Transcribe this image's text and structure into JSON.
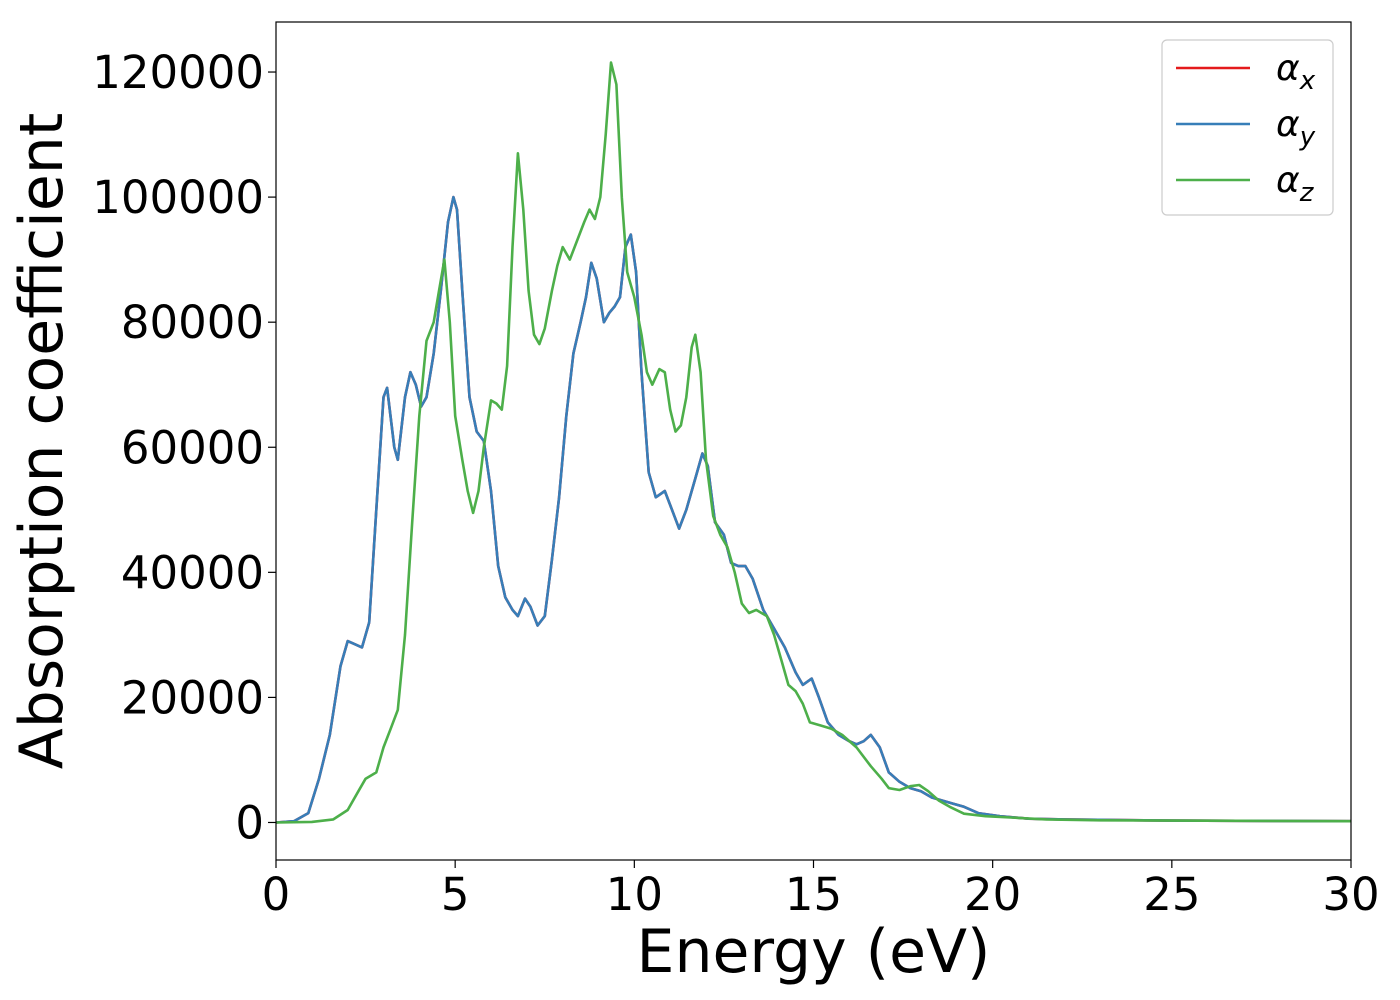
{
  "chart_data": {
    "type": "line",
    "xlabel": "Energy (eV)",
    "ylabel": "Absorption coefficient",
    "xlim": [
      0,
      30
    ],
    "ylim": [
      -6000,
      128000
    ],
    "x_ticks": [
      "0",
      "5",
      "10",
      "15",
      "20",
      "25",
      "30"
    ],
    "y_ticks": [
      "0",
      "20000",
      "40000",
      "60000",
      "80000",
      "100000",
      "120000"
    ],
    "grid": false,
    "legend_position": "upper-right",
    "series": [
      {
        "name": "α",
        "subscript": "x",
        "color": "#e41a1c",
        "points": [
          [
            0,
            0
          ],
          [
            0.5,
            200
          ],
          [
            0.9,
            1500
          ],
          [
            1.2,
            7000
          ],
          [
            1.5,
            14000
          ],
          [
            1.8,
            25000
          ],
          [
            2.0,
            29000
          ],
          [
            2.2,
            28500
          ],
          [
            2.4,
            28000
          ],
          [
            2.6,
            32000
          ],
          [
            2.8,
            50000
          ],
          [
            3.0,
            68000
          ],
          [
            3.1,
            69500
          ],
          [
            3.3,
            60000
          ],
          [
            3.4,
            58000
          ],
          [
            3.6,
            68000
          ],
          [
            3.75,
            72000
          ],
          [
            3.9,
            70000
          ],
          [
            4.05,
            66500
          ],
          [
            4.2,
            68000
          ],
          [
            4.4,
            75000
          ],
          [
            4.6,
            85000
          ],
          [
            4.8,
            96000
          ],
          [
            4.95,
            100000
          ],
          [
            5.05,
            98000
          ],
          [
            5.2,
            85000
          ],
          [
            5.4,
            68000
          ],
          [
            5.6,
            62500
          ],
          [
            5.8,
            61000
          ],
          [
            6.0,
            53000
          ],
          [
            6.2,
            41000
          ],
          [
            6.4,
            36000
          ],
          [
            6.6,
            34000
          ],
          [
            6.75,
            33000
          ],
          [
            6.95,
            35800
          ],
          [
            7.1,
            34500
          ],
          [
            7.3,
            31500
          ],
          [
            7.5,
            33000
          ],
          [
            7.7,
            42000
          ],
          [
            7.9,
            52000
          ],
          [
            8.1,
            65000
          ],
          [
            8.3,
            75000
          ],
          [
            8.5,
            80000
          ],
          [
            8.65,
            84000
          ],
          [
            8.8,
            89500
          ],
          [
            8.95,
            87000
          ],
          [
            9.15,
            80000
          ],
          [
            9.3,
            81500
          ],
          [
            9.45,
            82500
          ],
          [
            9.6,
            84000
          ],
          [
            9.75,
            92000
          ],
          [
            9.9,
            94000
          ],
          [
            10.05,
            88000
          ],
          [
            10.2,
            72000
          ],
          [
            10.4,
            56000
          ],
          [
            10.6,
            52000
          ],
          [
            10.85,
            53000
          ],
          [
            11.05,
            50000
          ],
          [
            11.25,
            47000
          ],
          [
            11.45,
            50000
          ],
          [
            11.7,
            55000
          ],
          [
            11.9,
            59000
          ],
          [
            12.05,
            57000
          ],
          [
            12.25,
            48000
          ],
          [
            12.5,
            46000
          ],
          [
            12.7,
            41500
          ],
          [
            12.9,
            41000
          ],
          [
            13.1,
            41000
          ],
          [
            13.3,
            39000
          ],
          [
            13.6,
            34000
          ],
          [
            13.9,
            31000
          ],
          [
            14.2,
            28000
          ],
          [
            14.5,
            24000
          ],
          [
            14.7,
            22000
          ],
          [
            14.95,
            23000
          ],
          [
            15.15,
            20000
          ],
          [
            15.4,
            16000
          ],
          [
            15.7,
            14000
          ],
          [
            16.0,
            13000
          ],
          [
            16.2,
            12500
          ],
          [
            16.4,
            13000
          ],
          [
            16.6,
            14000
          ],
          [
            16.85,
            12000
          ],
          [
            17.1,
            8000
          ],
          [
            17.4,
            6500
          ],
          [
            17.7,
            5500
          ],
          [
            18.0,
            5000
          ],
          [
            18.3,
            4000
          ],
          [
            18.6,
            3500
          ],
          [
            18.9,
            3000
          ],
          [
            19.2,
            2500
          ],
          [
            19.6,
            1500
          ],
          [
            20.2,
            1000
          ],
          [
            21.0,
            600
          ],
          [
            22.0,
            500
          ],
          [
            25.0,
            300
          ],
          [
            30.0,
            200
          ]
        ]
      },
      {
        "name": "α",
        "subscript": "y",
        "color": "#377eb8",
        "points": [
          [
            0,
            0
          ],
          [
            0.5,
            200
          ],
          [
            0.9,
            1500
          ],
          [
            1.2,
            7000
          ],
          [
            1.5,
            14000
          ],
          [
            1.8,
            25000
          ],
          [
            2.0,
            29000
          ],
          [
            2.2,
            28500
          ],
          [
            2.4,
            28000
          ],
          [
            2.6,
            32000
          ],
          [
            2.8,
            50000
          ],
          [
            3.0,
            68000
          ],
          [
            3.1,
            69500
          ],
          [
            3.3,
            60000
          ],
          [
            3.4,
            58000
          ],
          [
            3.6,
            68000
          ],
          [
            3.75,
            72000
          ],
          [
            3.9,
            70000
          ],
          [
            4.05,
            66500
          ],
          [
            4.2,
            68000
          ],
          [
            4.4,
            75000
          ],
          [
            4.6,
            85000
          ],
          [
            4.8,
            96000
          ],
          [
            4.95,
            100000
          ],
          [
            5.05,
            98000
          ],
          [
            5.2,
            85000
          ],
          [
            5.4,
            68000
          ],
          [
            5.6,
            62500
          ],
          [
            5.8,
            61000
          ],
          [
            6.0,
            53000
          ],
          [
            6.2,
            41000
          ],
          [
            6.4,
            36000
          ],
          [
            6.6,
            34000
          ],
          [
            6.75,
            33000
          ],
          [
            6.95,
            35800
          ],
          [
            7.1,
            34500
          ],
          [
            7.3,
            31500
          ],
          [
            7.5,
            33000
          ],
          [
            7.7,
            42000
          ],
          [
            7.9,
            52000
          ],
          [
            8.1,
            65000
          ],
          [
            8.3,
            75000
          ],
          [
            8.5,
            80000
          ],
          [
            8.65,
            84000
          ],
          [
            8.8,
            89500
          ],
          [
            8.95,
            87000
          ],
          [
            9.15,
            80000
          ],
          [
            9.3,
            81500
          ],
          [
            9.45,
            82500
          ],
          [
            9.6,
            84000
          ],
          [
            9.75,
            92000
          ],
          [
            9.9,
            94000
          ],
          [
            10.05,
            88000
          ],
          [
            10.2,
            72000
          ],
          [
            10.4,
            56000
          ],
          [
            10.6,
            52000
          ],
          [
            10.85,
            53000
          ],
          [
            11.05,
            50000
          ],
          [
            11.25,
            47000
          ],
          [
            11.45,
            50000
          ],
          [
            11.7,
            55000
          ],
          [
            11.9,
            59000
          ],
          [
            12.05,
            57000
          ],
          [
            12.25,
            48000
          ],
          [
            12.5,
            46000
          ],
          [
            12.7,
            41500
          ],
          [
            12.9,
            41000
          ],
          [
            13.1,
            41000
          ],
          [
            13.3,
            39000
          ],
          [
            13.6,
            34000
          ],
          [
            13.9,
            31000
          ],
          [
            14.2,
            28000
          ],
          [
            14.5,
            24000
          ],
          [
            14.7,
            22000
          ],
          [
            14.95,
            23000
          ],
          [
            15.15,
            20000
          ],
          [
            15.4,
            16000
          ],
          [
            15.7,
            14000
          ],
          [
            16.0,
            13000
          ],
          [
            16.2,
            12500
          ],
          [
            16.4,
            13000
          ],
          [
            16.6,
            14000
          ],
          [
            16.85,
            12000
          ],
          [
            17.1,
            8000
          ],
          [
            17.4,
            6500
          ],
          [
            17.7,
            5500
          ],
          [
            18.0,
            5000
          ],
          [
            18.3,
            4000
          ],
          [
            18.6,
            3500
          ],
          [
            18.9,
            3000
          ],
          [
            19.2,
            2500
          ],
          [
            19.6,
            1500
          ],
          [
            20.2,
            1000
          ],
          [
            21.0,
            600
          ],
          [
            22.0,
            500
          ],
          [
            25.0,
            300
          ],
          [
            30.0,
            200
          ]
        ]
      },
      {
        "name": "α",
        "subscript": "z",
        "color": "#4daf4a",
        "points": [
          [
            0,
            0
          ],
          [
            1.0,
            100
          ],
          [
            1.6,
            500
          ],
          [
            2.0,
            2000
          ],
          [
            2.3,
            5000
          ],
          [
            2.5,
            7000
          ],
          [
            2.8,
            8000
          ],
          [
            3.0,
            12000
          ],
          [
            3.2,
            15000
          ],
          [
            3.4,
            18000
          ],
          [
            3.6,
            30000
          ],
          [
            3.8,
            48000
          ],
          [
            4.0,
            65000
          ],
          [
            4.2,
            77000
          ],
          [
            4.4,
            80000
          ],
          [
            4.55,
            85000
          ],
          [
            4.7,
            90000
          ],
          [
            4.85,
            80000
          ],
          [
            5.0,
            65000
          ],
          [
            5.2,
            58000
          ],
          [
            5.35,
            53000
          ],
          [
            5.5,
            49500
          ],
          [
            5.65,
            53000
          ],
          [
            5.8,
            60000
          ],
          [
            6.0,
            67500
          ],
          [
            6.15,
            67000
          ],
          [
            6.3,
            66000
          ],
          [
            6.45,
            73000
          ],
          [
            6.6,
            92000
          ],
          [
            6.75,
            107000
          ],
          [
            6.9,
            98000
          ],
          [
            7.05,
            85000
          ],
          [
            7.2,
            78000
          ],
          [
            7.35,
            76500
          ],
          [
            7.5,
            79000
          ],
          [
            7.7,
            85000
          ],
          [
            7.85,
            89000
          ],
          [
            8.0,
            92000
          ],
          [
            8.2,
            90000
          ],
          [
            8.4,
            93000
          ],
          [
            8.6,
            96000
          ],
          [
            8.75,
            98000
          ],
          [
            8.9,
            96500
          ],
          [
            9.05,
            100000
          ],
          [
            9.2,
            110000
          ],
          [
            9.35,
            121500
          ],
          [
            9.5,
            118000
          ],
          [
            9.65,
            100000
          ],
          [
            9.8,
            88000
          ],
          [
            10.0,
            84000
          ],
          [
            10.2,
            78000
          ],
          [
            10.35,
            72000
          ],
          [
            10.5,
            70000
          ],
          [
            10.7,
            72500
          ],
          [
            10.85,
            72000
          ],
          [
            11.0,
            66000
          ],
          [
            11.15,
            62500
          ],
          [
            11.3,
            63500
          ],
          [
            11.45,
            68000
          ],
          [
            11.6,
            76000
          ],
          [
            11.7,
            78000
          ],
          [
            11.85,
            72000
          ],
          [
            12.0,
            58000
          ],
          [
            12.2,
            49000
          ],
          [
            12.4,
            46000
          ],
          [
            12.6,
            44000
          ],
          [
            12.8,
            40000
          ],
          [
            13.0,
            35000
          ],
          [
            13.2,
            33500
          ],
          [
            13.4,
            34000
          ],
          [
            13.7,
            33000
          ],
          [
            13.9,
            30000
          ],
          [
            14.1,
            26000
          ],
          [
            14.3,
            22000
          ],
          [
            14.5,
            21000
          ],
          [
            14.7,
            19000
          ],
          [
            14.9,
            16000
          ],
          [
            15.2,
            15500
          ],
          [
            15.5,
            15000
          ],
          [
            15.8,
            14000
          ],
          [
            16.2,
            12000
          ],
          [
            16.6,
            9000
          ],
          [
            16.9,
            7000
          ],
          [
            17.1,
            5500
          ],
          [
            17.4,
            5200
          ],
          [
            17.7,
            5800
          ],
          [
            17.95,
            6000
          ],
          [
            18.2,
            5000
          ],
          [
            18.5,
            3500
          ],
          [
            18.8,
            2500
          ],
          [
            19.2,
            1400
          ],
          [
            19.8,
            1000
          ],
          [
            20.5,
            800
          ],
          [
            21.5,
            500
          ],
          [
            23.0,
            350
          ],
          [
            25.0,
            300
          ],
          [
            30.0,
            200
          ]
        ]
      }
    ]
  }
}
